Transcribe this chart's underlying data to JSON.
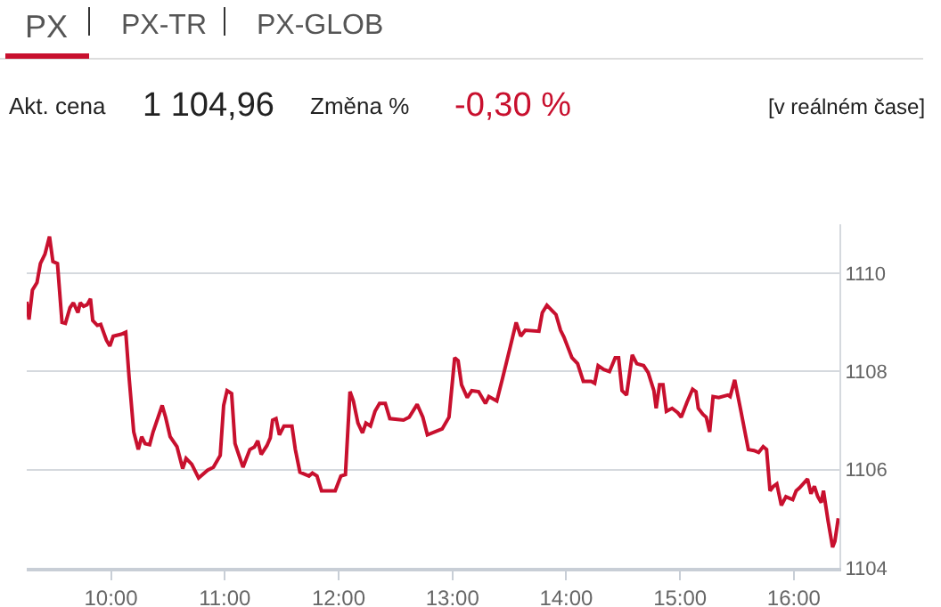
{
  "chart_data": {
    "type": "line",
    "annotations": [
      "PX",
      "PX-TR",
      "PX-GLOB",
      "Akt. cena",
      "1 104,96",
      "Změna %",
      "-0,30 %",
      "[v reálném čase]"
    ],
    "x": [
      9.26,
      9.28,
      9.31,
      9.35,
      9.38,
      9.42,
      9.46,
      9.49,
      9.53,
      9.57,
      9.6,
      9.64,
      9.67,
      9.71,
      9.73,
      9.76,
      9.79,
      9.82,
      9.84,
      9.88,
      9.91,
      9.96,
      9.99,
      10.02,
      10.09,
      10.13,
      10.16,
      10.2,
      10.24,
      10.27,
      10.3,
      10.34,
      10.37,
      10.45,
      10.48,
      10.52,
      10.58,
      10.63,
      10.66,
      10.71,
      10.77,
      10.85,
      10.9,
      10.96,
      10.99,
      11.02,
      11.06,
      11.09,
      11.16,
      11.22,
      11.26,
      11.29,
      11.32,
      11.37,
      11.4,
      11.42,
      11.45,
      11.48,
      11.52,
      11.59,
      11.62,
      11.66,
      11.74,
      11.77,
      11.81,
      11.85,
      11.97,
      12.02,
      12.06,
      12.1,
      12.13,
      12.17,
      12.21,
      12.24,
      12.28,
      12.32,
      12.36,
      12.41,
      12.45,
      12.57,
      12.62,
      12.69,
      12.74,
      12.78,
      12.91,
      12.97,
      13.02,
      13.05,
      13.08,
      13.13,
      13.17,
      13.23,
      13.29,
      13.32,
      13.39,
      13.44,
      13.51,
      13.56,
      13.6,
      13.64,
      13.76,
      13.79,
      13.83,
      13.88,
      13.91,
      13.95,
      13.98,
      14.05,
      14.1,
      14.15,
      14.22,
      14.25,
      14.28,
      14.33,
      14.38,
      14.43,
      14.46,
      14.49,
      14.53,
      14.58,
      14.62,
      14.68,
      14.72,
      14.77,
      14.79,
      14.82,
      14.85,
      14.88,
      14.93,
      14.98,
      15.01,
      15.06,
      15.11,
      15.14,
      15.16,
      15.2,
      15.23,
      15.26,
      15.29,
      15.34,
      15.42,
      15.44,
      15.48,
      15.53,
      15.6,
      15.65,
      15.69,
      15.73,
      15.76,
      15.79,
      15.82,
      15.85,
      15.89,
      15.93,
      15.99,
      16.02,
      16.05,
      16.12,
      16.15,
      16.18,
      16.21,
      16.24,
      16.26,
      16.3,
      16.34,
      16.36,
      16.39
    ],
    "series": [
      {
        "color": "#c8102e",
        "values": [
          1109.42,
          1109.06,
          1109.66,
          1109.81,
          1110.2,
          1110.39,
          1110.75,
          1110.24,
          1110.2,
          1109.0,
          1108.98,
          1109.3,
          1109.4,
          1109.2,
          1109.4,
          1109.33,
          1109.36,
          1109.48,
          1109.04,
          1108.94,
          1108.96,
          1108.64,
          1108.52,
          1108.72,
          1108.76,
          1108.8,
          1107.86,
          1106.77,
          1106.41,
          1106.67,
          1106.53,
          1106.51,
          1106.77,
          1107.31,
          1107.07,
          1106.67,
          1106.47,
          1106.02,
          1106.23,
          1106.11,
          1105.83,
          1105.99,
          1106.05,
          1106.29,
          1107.31,
          1107.61,
          1107.55,
          1106.53,
          1106.05,
          1106.41,
          1106.46,
          1106.59,
          1106.31,
          1106.49,
          1106.65,
          1107.01,
          1107.04,
          1106.71,
          1106.89,
          1106.89,
          1106.41,
          1105.95,
          1105.87,
          1105.93,
          1105.87,
          1105.57,
          1105.57,
          1105.87,
          1105.9,
          1107.59,
          1107.4,
          1106.95,
          1106.75,
          1106.95,
          1106.89,
          1107.19,
          1107.35,
          1107.35,
          1107.04,
          1107.01,
          1107.07,
          1107.33,
          1107.07,
          1106.71,
          1106.83,
          1107.07,
          1108.28,
          1108.22,
          1107.73,
          1107.47,
          1107.61,
          1107.59,
          1107.35,
          1107.49,
          1107.4,
          1107.86,
          1108.52,
          1109.0,
          1108.72,
          1108.84,
          1108.82,
          1109.2,
          1109.35,
          1109.23,
          1109.16,
          1108.84,
          1108.7,
          1108.28,
          1108.16,
          1107.8,
          1107.8,
          1107.76,
          1108.12,
          1108.04,
          1108.0,
          1108.28,
          1108.28,
          1107.61,
          1107.52,
          1108.34,
          1108.16,
          1108.12,
          1107.98,
          1107.61,
          1107.25,
          1107.73,
          1107.73,
          1107.19,
          1107.25,
          1107.16,
          1107.07,
          1107.37,
          1107.64,
          1107.59,
          1107.25,
          1107.13,
          1107.07,
          1106.77,
          1107.49,
          1107.47,
          1107.52,
          1107.49,
          1107.83,
          1107.25,
          1106.41,
          1106.39,
          1106.35,
          1106.47,
          1106.41,
          1105.57,
          1105.66,
          1105.71,
          1105.27,
          1105.45,
          1105.39,
          1105.57,
          1105.63,
          1105.81,
          1105.51,
          1105.66,
          1105.45,
          1105.33,
          1105.57,
          1104.96,
          1104.42,
          1104.54,
          1105.01
        ]
      }
    ],
    "xlim": [
      9.26,
      16.4
    ],
    "xticks": [
      {
        "value": 10,
        "label": "10:00"
      },
      {
        "value": 11,
        "label": "11:00"
      },
      {
        "value": 12,
        "label": "12:00"
      },
      {
        "value": 13,
        "label": "13:00"
      },
      {
        "value": 14,
        "label": "14:00"
      },
      {
        "value": 15,
        "label": "15:00"
      },
      {
        "value": 16,
        "label": "16:00"
      }
    ],
    "ylim": [
      1104,
      1111
    ],
    "yticks": [
      1104,
      1106,
      1108,
      1110
    ],
    "grid": "y",
    "marker": "none",
    "line_style": "solid"
  }
}
